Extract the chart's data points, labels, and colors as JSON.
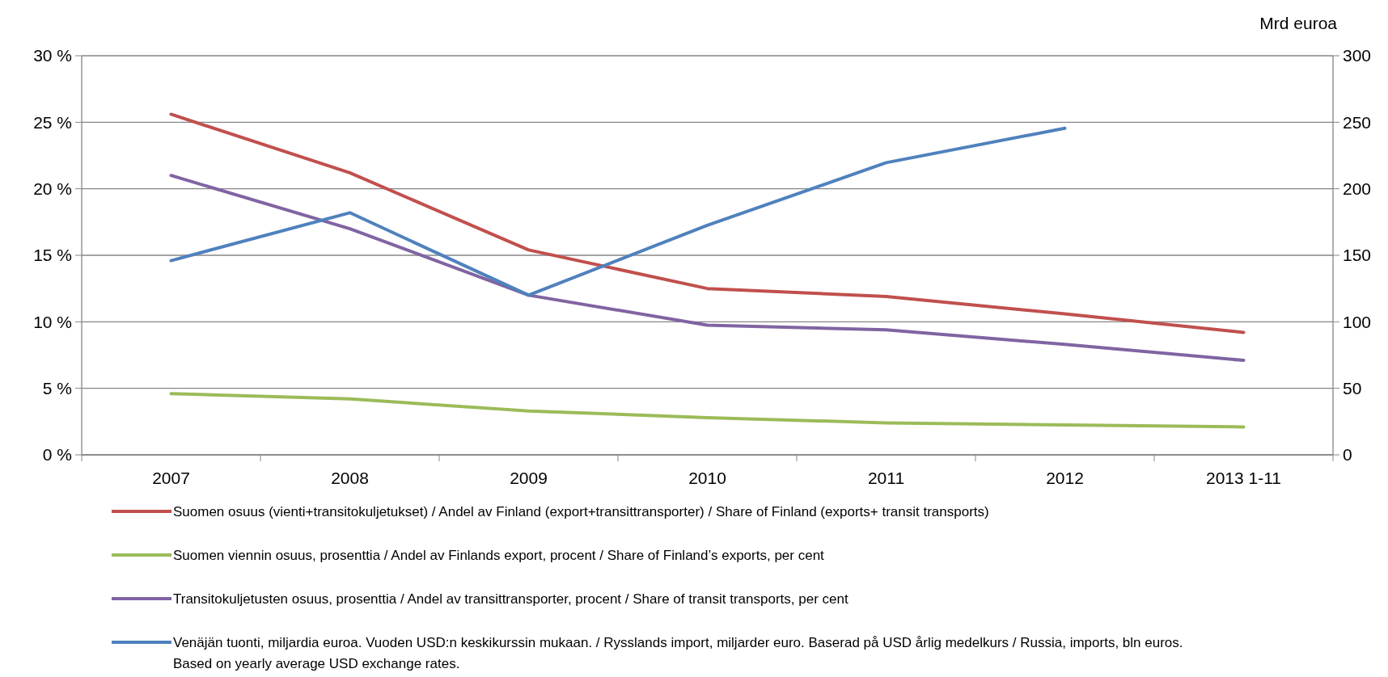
{
  "chart_data": {
    "type": "line",
    "categories": [
      "2007",
      "2008",
      "2009",
      "2010",
      "2011",
      "2012",
      "2013 1-11"
    ],
    "ylim": [
      0,
      30
    ],
    "yticks": [
      {
        "value": 0,
        "label": "0 %"
      },
      {
        "value": 5,
        "label": "5 %"
      },
      {
        "value": 10,
        "label": "10 %"
      },
      {
        "value": 15,
        "label": "15 %"
      },
      {
        "value": 20,
        "label": "20 %"
      },
      {
        "value": 25,
        "label": "25 %"
      },
      {
        "value": 30,
        "label": "30 %"
      }
    ],
    "y2lim": [
      0,
      300
    ],
    "y2ticks": [
      0,
      50,
      100,
      150,
      200,
      250,
      300
    ],
    "y2label": "Mrd euroa",
    "grid": "y",
    "legend": "bottom",
    "marker": "none",
    "line_style": "solid",
    "series": [
      {
        "name": "Suomen osuus (vienti+transitokuljetukset) / Andel av Finland (export+transittransporter) / Share of Finland (exports+ transit transports)",
        "color": "#c0504d",
        "values": [
          25.6,
          21.2,
          15.4,
          12.5,
          11.9,
          10.6,
          9.2
        ]
      },
      {
        "name": "Suomen viennin osuus, prosenttia / Andel  av Finlands export, procent / Share of Finland’s exports, per cent",
        "color": "#9bbb59",
        "values": [
          4.6,
          4.2,
          3.3,
          2.8,
          2.4,
          2.25,
          2.1
        ]
      },
      {
        "name": "Transitokuljetusten osuus, prosenttia / Andel av transittransporter, procent / Share of transit transports, per cent",
        "color": "#8064a2",
        "values": [
          21.0,
          17.0,
          12.0,
          9.75,
          9.4,
          8.3,
          7.1
        ]
      },
      {
        "name": "Venäjän tuonti, miljardia euroa. Vuoden USD:n keskikurssin mukaan. / Rysslands import, miljarder euro. Baserad på USD årlig medelkurs  / Russia, imports, bln euros. Based on yearly average USD exchange rates.",
        "color": "#4f81bd",
        "axis": "y2",
        "values": [
          146,
          182,
          120,
          172.5,
          219.6,
          245.5,
          null
        ]
      }
    ]
  }
}
